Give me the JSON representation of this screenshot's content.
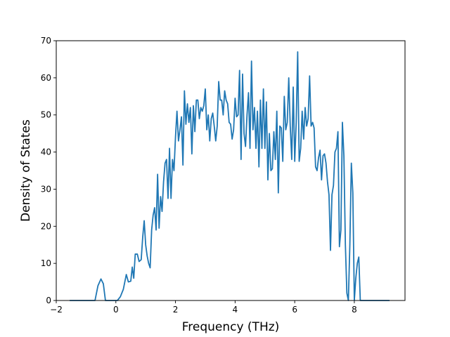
{
  "chart_data": {
    "type": "line",
    "xlabel": "Frequency (THz)",
    "ylabel": "Density of States",
    "xlim": [
      -2.0,
      9.7
    ],
    "ylim": [
      0,
      70
    ],
    "x_ticks": [
      -2,
      0,
      2,
      4,
      6,
      8
    ],
    "x_tick_labels": [
      "−2",
      "0",
      "2",
      "4",
      "6",
      "8"
    ],
    "y_ticks": [
      0,
      10,
      20,
      30,
      40,
      50,
      60,
      70
    ],
    "y_tick_labels": [
      "0",
      "10",
      "20",
      "30",
      "40",
      "50",
      "60",
      "70"
    ],
    "grid": false,
    "series": [
      {
        "color": "#1f77b4",
        "points": [
          [
            -1.55,
            0
          ],
          [
            -0.7,
            0
          ],
          [
            -0.6,
            4
          ],
          [
            -0.5,
            5.8
          ],
          [
            -0.42,
            4.5
          ],
          [
            -0.35,
            0
          ],
          [
            0.05,
            0
          ],
          [
            0.15,
            1
          ],
          [
            0.25,
            3
          ],
          [
            0.35,
            7
          ],
          [
            0.42,
            5
          ],
          [
            0.5,
            5.2
          ],
          [
            0.55,
            9
          ],
          [
            0.6,
            6
          ],
          [
            0.65,
            12.5
          ],
          [
            0.72,
            12.5
          ],
          [
            0.78,
            10.5
          ],
          [
            0.85,
            11
          ],
          [
            0.9,
            17
          ],
          [
            0.95,
            21.5
          ],
          [
            1.0,
            15
          ],
          [
            1.05,
            12
          ],
          [
            1.1,
            10
          ],
          [
            1.15,
            8.8
          ],
          [
            1.2,
            19
          ],
          [
            1.25,
            23
          ],
          [
            1.3,
            25
          ],
          [
            1.35,
            19
          ],
          [
            1.4,
            34
          ],
          [
            1.45,
            19.5
          ],
          [
            1.5,
            28
          ],
          [
            1.55,
            24
          ],
          [
            1.6,
            32
          ],
          [
            1.65,
            37
          ],
          [
            1.7,
            38
          ],
          [
            1.75,
            27.5
          ],
          [
            1.8,
            41
          ],
          [
            1.85,
            27.5
          ],
          [
            1.9,
            38
          ],
          [
            1.95,
            35
          ],
          [
            2.0,
            44
          ],
          [
            2.05,
            51
          ],
          [
            2.1,
            43
          ],
          [
            2.15,
            46
          ],
          [
            2.2,
            49.5
          ],
          [
            2.25,
            36.5
          ],
          [
            2.3,
            56.5
          ],
          [
            2.35,
            47.5
          ],
          [
            2.4,
            53
          ],
          [
            2.45,
            48
          ],
          [
            2.5,
            52
          ],
          [
            2.55,
            39.5
          ],
          [
            2.6,
            52.5
          ],
          [
            2.65,
            45.5
          ],
          [
            2.7,
            54
          ],
          [
            2.75,
            54
          ],
          [
            2.8,
            49
          ],
          [
            2.85,
            52
          ],
          [
            2.9,
            51
          ],
          [
            2.95,
            52.5
          ],
          [
            3.0,
            57
          ],
          [
            3.05,
            46
          ],
          [
            3.1,
            50
          ],
          [
            3.15,
            43
          ],
          [
            3.2,
            49
          ],
          [
            3.25,
            50.5
          ],
          [
            3.3,
            47
          ],
          [
            3.35,
            43
          ],
          [
            3.4,
            47
          ],
          [
            3.45,
            59
          ],
          [
            3.5,
            54
          ],
          [
            3.55,
            54
          ],
          [
            3.6,
            50
          ],
          [
            3.65,
            56.5
          ],
          [
            3.7,
            54
          ],
          [
            3.75,
            53
          ],
          [
            3.8,
            48
          ],
          [
            3.85,
            47.5
          ],
          [
            3.9,
            43.5
          ],
          [
            3.95,
            46
          ],
          [
            4.0,
            54.5
          ],
          [
            4.05,
            49.5
          ],
          [
            4.1,
            50
          ],
          [
            4.15,
            62
          ],
          [
            4.2,
            38
          ],
          [
            4.25,
            61
          ],
          [
            4.3,
            45
          ],
          [
            4.35,
            41.5
          ],
          [
            4.4,
            50
          ],
          [
            4.45,
            56
          ],
          [
            4.5,
            41
          ],
          [
            4.55,
            64.5
          ],
          [
            4.6,
            46
          ],
          [
            4.65,
            52
          ],
          [
            4.7,
            41
          ],
          [
            4.75,
            51
          ],
          [
            4.8,
            36
          ],
          [
            4.85,
            54
          ],
          [
            4.9,
            41
          ],
          [
            4.95,
            57
          ],
          [
            5.0,
            41
          ],
          [
            5.05,
            53.5
          ],
          [
            5.1,
            32.5
          ],
          [
            5.15,
            45
          ],
          [
            5.2,
            35
          ],
          [
            5.25,
            35.5
          ],
          [
            5.3,
            45.5
          ],
          [
            5.35,
            38
          ],
          [
            5.4,
            51
          ],
          [
            5.45,
            29
          ],
          [
            5.5,
            47
          ],
          [
            5.55,
            46.5
          ],
          [
            5.6,
            37.5
          ],
          [
            5.65,
            55
          ],
          [
            5.7,
            46
          ],
          [
            5.75,
            48
          ],
          [
            5.8,
            60
          ],
          [
            5.85,
            47
          ],
          [
            5.9,
            38
          ],
          [
            5.95,
            57.5
          ],
          [
            6.0,
            37.5
          ],
          [
            6.05,
            48
          ],
          [
            6.1,
            67
          ],
          [
            6.15,
            37.5
          ],
          [
            6.2,
            41
          ],
          [
            6.25,
            51
          ],
          [
            6.3,
            43.5
          ],
          [
            6.35,
            52
          ],
          [
            6.4,
            47
          ],
          [
            6.45,
            49
          ],
          [
            6.5,
            60.5
          ],
          [
            6.55,
            47
          ],
          [
            6.6,
            48
          ],
          [
            6.65,
            46.5
          ],
          [
            6.7,
            36
          ],
          [
            6.75,
            35
          ],
          [
            6.8,
            38.5
          ],
          [
            6.85,
            40.5
          ],
          [
            6.9,
            32.5
          ],
          [
            6.95,
            39
          ],
          [
            7.0,
            39.5
          ],
          [
            7.05,
            37
          ],
          [
            7.1,
            32
          ],
          [
            7.15,
            28.5
          ],
          [
            7.2,
            13.5
          ],
          [
            7.25,
            28.5
          ],
          [
            7.3,
            31
          ],
          [
            7.35,
            40
          ],
          [
            7.4,
            41
          ],
          [
            7.45,
            45.5
          ],
          [
            7.5,
            14.5
          ],
          [
            7.55,
            19
          ],
          [
            7.6,
            48
          ],
          [
            7.65,
            39
          ],
          [
            7.7,
            15
          ],
          [
            7.75,
            2
          ],
          [
            7.8,
            0
          ],
          [
            7.85,
            15
          ],
          [
            7.9,
            37
          ],
          [
            7.95,
            29
          ],
          [
            8.0,
            0
          ],
          [
            8.05,
            6
          ],
          [
            8.1,
            10
          ],
          [
            8.15,
            11.7
          ],
          [
            8.2,
            0
          ],
          [
            9.18,
            0
          ]
        ]
      }
    ]
  }
}
